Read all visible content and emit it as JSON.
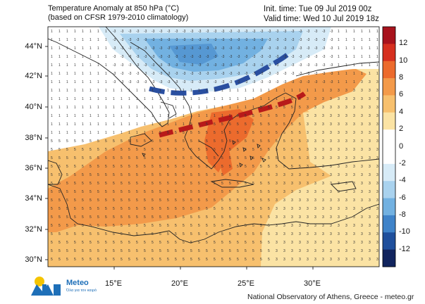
{
  "header": {
    "title_line1": "Temperature Anomaly at 850 hPa (°C)",
    "title_line2": "(based on CFSR 1979-2010 climatology)",
    "init_time": "Init. time: Tue 09 Jul 2019 00z",
    "valid_time": "Valid time: Wed 10 Jul 2019 18z"
  },
  "axes": {
    "latitudes": [
      "44°N",
      "42°N",
      "40°N",
      "38°N",
      "36°N",
      "34°N",
      "32°N",
      "30°N"
    ],
    "longitudes": [
      "15°E",
      "20°E",
      "25°E",
      "30°E"
    ]
  },
  "colorbar": {
    "labels": [
      "12",
      "10",
      "8",
      "6",
      "4",
      "2",
      "0",
      "-2",
      "-4",
      "-6",
      "-8",
      "-10",
      "-12"
    ],
    "colors": [
      "#a8131d",
      "#d6301f",
      "#ec6b2d",
      "#f39a4a",
      "#f7c06e",
      "#fbe3a4",
      "#ffffff",
      "#ffffff",
      "#d7ebf7",
      "#a9d2ee",
      "#72b1e1",
      "#3f83c9",
      "#1f4f9c",
      "#11245e"
    ]
  },
  "overlays": {
    "cold_front_color": "#2a4fa0",
    "warm_front_color": "#b81a1a"
  },
  "branding": {
    "logo_name": "Meteo",
    "logo_tagline": "Όλα για τον καιρό",
    "credit": "National Observatory of Athens, Greece - meteo.gr"
  }
}
